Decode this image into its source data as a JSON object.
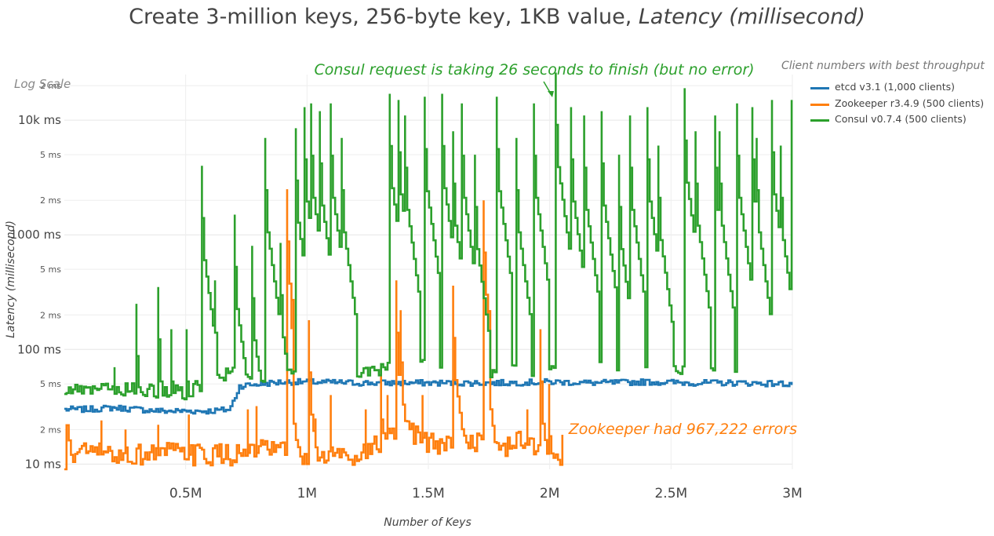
{
  "chart_data": {
    "type": "line",
    "title": "Create 3-million keys, 256-byte key, 1KB value,",
    "title_italic": "Latency (millisecond)",
    "xlabel": "Number of Keys",
    "ylabel": "Latency (millisecond)",
    "scale_note": "Log Scale",
    "y_scale": "log",
    "xlim": [
      0,
      3000000
    ],
    "ylim": [
      9,
      25000
    ],
    "x_ticks": [
      {
        "value": 500000,
        "label": "0.5M"
      },
      {
        "value": 1000000,
        "label": "1M"
      },
      {
        "value": 1500000,
        "label": "1.5M"
      },
      {
        "value": 2000000,
        "label": "2M"
      },
      {
        "value": 2500000,
        "label": "2.5M"
      },
      {
        "value": 3000000,
        "label": "3M"
      }
    ],
    "y_major_ticks": [
      {
        "value": 10,
        "label": "10 ms"
      },
      {
        "value": 100,
        "label": "100 ms"
      },
      {
        "value": 1000,
        "label": "1000 ms"
      },
      {
        "value": 10000,
        "label": "10k ms"
      }
    ],
    "y_minor_ticks": [
      {
        "value": 20,
        "label": "2 ms"
      },
      {
        "value": 50,
        "label": "5 ms"
      },
      {
        "value": 200,
        "label": "2 ms"
      },
      {
        "value": 500,
        "label": "5 ms"
      },
      {
        "value": 2000,
        "label": "2 ms"
      },
      {
        "value": 5000,
        "label": "5 ms"
      },
      {
        "value": 20000,
        "label": "2 ms"
      }
    ],
    "grid": true,
    "legend_title": "Client numbers with best throughput",
    "legend_position": "top-right",
    "series": [
      {
        "name": "etcd v3.1 (1,000 clients)",
        "color": "#1f77b4",
        "baseline": [
          [
            0,
            30
          ],
          [
            100000,
            30
          ],
          [
            200000,
            31
          ],
          [
            300000,
            30
          ],
          [
            400000,
            29
          ],
          [
            500000,
            29
          ],
          [
            600000,
            29
          ],
          [
            680000,
            30
          ],
          [
            720000,
            48
          ],
          [
            800000,
            50
          ],
          [
            900000,
            52
          ],
          [
            1000000,
            52
          ],
          [
            1200000,
            51
          ],
          [
            1400000,
            51
          ],
          [
            1600000,
            51
          ],
          [
            1800000,
            51
          ],
          [
            2000000,
            52
          ],
          [
            2200000,
            51
          ],
          [
            2400000,
            52
          ],
          [
            2600000,
            51
          ],
          [
            2800000,
            51
          ],
          [
            2990000,
            50
          ]
        ],
        "jitter": 0.06,
        "spikes": [
          [
            3000000,
            40
          ]
        ]
      },
      {
        "name": "Zookeeper r3.4.9 (500 clients)",
        "color": "#ff7f0e",
        "baseline": [
          [
            0,
            9
          ],
          [
            10000,
            20
          ],
          [
            30000,
            12
          ],
          [
            100000,
            13
          ],
          [
            200000,
            12
          ],
          [
            300000,
            12
          ],
          [
            400000,
            13
          ],
          [
            500000,
            12
          ],
          [
            600000,
            12
          ],
          [
            700000,
            12
          ],
          [
            800000,
            13
          ],
          [
            900000,
            13
          ],
          [
            1000000,
            11
          ],
          [
            1100000,
            12
          ],
          [
            1200000,
            12
          ],
          [
            1300000,
            15
          ],
          [
            1400000,
            20
          ],
          [
            1500000,
            15
          ],
          [
            1600000,
            15
          ],
          [
            1700000,
            16
          ],
          [
            1800000,
            14
          ],
          [
            1900000,
            16
          ],
          [
            2000000,
            12
          ],
          [
            2020000,
            11
          ]
        ],
        "jitter": 0.22,
        "spikes": [
          [
            150000,
            24
          ],
          [
            250000,
            20
          ],
          [
            380000,
            22
          ],
          [
            510000,
            27
          ],
          [
            750000,
            30
          ],
          [
            790000,
            32
          ],
          [
            910000,
            2500
          ],
          [
            930000,
            150
          ],
          [
            1000000,
            180
          ],
          [
            1030000,
            25
          ],
          [
            1090000,
            40
          ],
          [
            1240000,
            30
          ],
          [
            1300000,
            70
          ],
          [
            1330000,
            40
          ],
          [
            1360000,
            400
          ],
          [
            1380000,
            220
          ],
          [
            1470000,
            40
          ],
          [
            1600000,
            360
          ],
          [
            1720000,
            2000
          ],
          [
            1740000,
            200
          ],
          [
            1900000,
            30
          ],
          [
            1960000,
            150
          ],
          [
            1990000,
            50
          ],
          [
            2050000,
            18
          ]
        ],
        "end_x": 2060000
      },
      {
        "name": "Consul v0.7.4 (500 clients)",
        "color": "#2ca02c",
        "baseline": [
          [
            0,
            42
          ],
          [
            100000,
            44
          ],
          [
            200000,
            45
          ],
          [
            300000,
            44
          ],
          [
            400000,
            43
          ],
          [
            500000,
            42
          ],
          [
            600000,
            56
          ],
          [
            700000,
            62
          ],
          [
            800000,
            57
          ],
          [
            900000,
            58
          ],
          [
            1000000,
            58
          ],
          [
            1100000,
            60
          ],
          [
            1200000,
            62
          ],
          [
            1300000,
            65
          ],
          [
            1400000,
            80
          ],
          [
            1500000,
            70
          ],
          [
            1600000,
            62
          ],
          [
            1700000,
            64
          ],
          [
            1800000,
            66
          ],
          [
            1900000,
            62
          ],
          [
            2000000,
            70
          ],
          [
            2100000,
            68
          ],
          [
            2200000,
            68
          ],
          [
            2300000,
            68
          ],
          [
            2400000,
            68
          ],
          [
            2500000,
            70
          ],
          [
            2600000,
            70
          ],
          [
            2700000,
            70
          ],
          [
            2800000,
            70
          ],
          [
            2900000,
            70
          ],
          [
            3000000,
            74
          ]
        ],
        "jitter": 0.14,
        "spikes": [
          [
            200000,
            70
          ],
          [
            290000,
            250
          ],
          [
            380000,
            350
          ],
          [
            440000,
            150
          ],
          [
            500000,
            150
          ],
          [
            560000,
            4000
          ],
          [
            620000,
            400
          ],
          [
            700000,
            1500
          ],
          [
            770000,
            800
          ],
          [
            820000,
            7000
          ],
          [
            890000,
            850
          ],
          [
            950000,
            8500
          ],
          [
            990000,
            13000
          ],
          [
            1010000,
            14000
          ],
          [
            1050000,
            12000
          ],
          [
            1090000,
            14000
          ],
          [
            1140000,
            7000
          ],
          [
            1340000,
            17000
          ],
          [
            1370000,
            15000
          ],
          [
            1400000,
            11000
          ],
          [
            1480000,
            16000
          ],
          [
            1550000,
            17000
          ],
          [
            1600000,
            8000
          ],
          [
            1630000,
            14000
          ],
          [
            1690000,
            5000
          ],
          [
            1780000,
            16000
          ],
          [
            1860000,
            7000
          ],
          [
            1930000,
            14000
          ],
          [
            2020000,
            26000
          ],
          [
            2080000,
            13000
          ],
          [
            2140000,
            11000
          ],
          [
            2210000,
            12000
          ],
          [
            2280000,
            5000
          ],
          [
            2330000,
            11000
          ],
          [
            2400000,
            13000
          ],
          [
            2440000,
            6000
          ],
          [
            2550000,
            19000
          ],
          [
            2600000,
            8000
          ],
          [
            2680000,
            11000
          ],
          [
            2700000,
            8000
          ],
          [
            2770000,
            14000
          ],
          [
            2830000,
            13000
          ],
          [
            2850000,
            7000
          ],
          [
            2910000,
            15000
          ],
          [
            2950000,
            6000
          ],
          [
            2990000,
            15000
          ]
        ],
        "end_x": 3000000
      }
    ],
    "annotations": [
      {
        "text": "Consul request is taking 26 seconds to finish (but no error)",
        "color": "#2ca02c",
        "target_x": 2020000,
        "target_y": 26000
      },
      {
        "text": "Zookeeper had 967,222 errors",
        "color": "#ff7f0e"
      }
    ]
  }
}
